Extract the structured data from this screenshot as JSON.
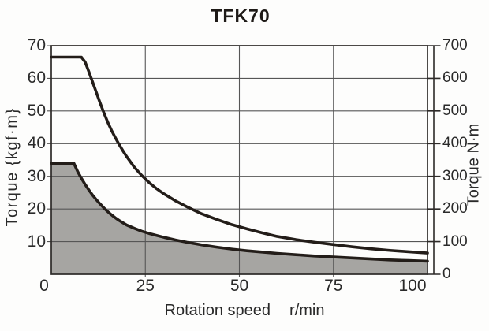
{
  "chart_data": {
    "type": "line",
    "title": "TFK70",
    "xlabel": "Rotation speed",
    "x_unit": "r/min",
    "ylabel_left": "Torque {kgf·m}",
    "ylabel_right": "Torque N·m",
    "xlim": [
      0,
      100
    ],
    "ylim_left": [
      0,
      70
    ],
    "ylim_right": [
      0,
      700
    ],
    "x_ticks": [
      0,
      25,
      50,
      75,
      100
    ],
    "y_ticks_left": [
      10,
      20,
      30,
      40,
      50,
      60,
      70
    ],
    "y_ticks_right": [
      0,
      100,
      200,
      300,
      400,
      500,
      600,
      700
    ],
    "grid": true,
    "legend": "none",
    "colors": {
      "curve": "#231d19",
      "shaded_fill": "#a6a5a2",
      "grid": "#565656",
      "axis": "#2d2a28",
      "background": "#fdfdfc"
    },
    "series": [
      {
        "name": "upper",
        "description_from_pixels": "thick black curve, flat then hyperbolic decay",
        "color": "#231d19",
        "fill": null,
        "points": [
          [
            0,
            66.5
          ],
          [
            8,
            66.5
          ],
          [
            9,
            65
          ],
          [
            10,
            62
          ],
          [
            11,
            58.8
          ],
          [
            12,
            55.6
          ],
          [
            13,
            52.4
          ],
          [
            14,
            49.4
          ],
          [
            15,
            46.6
          ],
          [
            16,
            44.1
          ],
          [
            17,
            41.9
          ],
          [
            18,
            39.8
          ],
          [
            19,
            37.9
          ],
          [
            20,
            36.1
          ],
          [
            22,
            32.9
          ],
          [
            24,
            30.3
          ],
          [
            26,
            28.1
          ],
          [
            28,
            26.2
          ],
          [
            30,
            24.6
          ],
          [
            33,
            22.5
          ],
          [
            36,
            20.7
          ],
          [
            40,
            18.5
          ],
          [
            44,
            16.8
          ],
          [
            48,
            15.2
          ],
          [
            52,
            13.9
          ],
          [
            56,
            12.7
          ],
          [
            60,
            11.6
          ],
          [
            65,
            10.6
          ],
          [
            70,
            9.8
          ],
          [
            75,
            9.1
          ],
          [
            80,
            8.4
          ],
          [
            85,
            7.8
          ],
          [
            90,
            7.3
          ],
          [
            95,
            6.9
          ],
          [
            100,
            6.5
          ]
        ]
      },
      {
        "name": "lower",
        "description_from_pixels": "thick black curve with gray shaded region below it",
        "color": "#231d19",
        "fill": "#a6a5a2",
        "points": [
          [
            0,
            34
          ],
          [
            6,
            34
          ],
          [
            7,
            31.5
          ],
          [
            8,
            29.4
          ],
          [
            9,
            27.5
          ],
          [
            10,
            25.8
          ],
          [
            11,
            24.2
          ],
          [
            12,
            22.8
          ],
          [
            13,
            21.5
          ],
          [
            14,
            20.3
          ],
          [
            15,
            19.2
          ],
          [
            16,
            18.2
          ],
          [
            17,
            17.3
          ],
          [
            18,
            16.5
          ],
          [
            19,
            15.8
          ],
          [
            20,
            15.1
          ],
          [
            22,
            14.1
          ],
          [
            24,
            13.2
          ],
          [
            26,
            12.5
          ],
          [
            28,
            11.9
          ],
          [
            30,
            11.3
          ],
          [
            33,
            10.5
          ],
          [
            36,
            9.8
          ],
          [
            40,
            9.0
          ],
          [
            44,
            8.3
          ],
          [
            48,
            7.7
          ],
          [
            52,
            7.2
          ],
          [
            56,
            6.8
          ],
          [
            60,
            6.4
          ],
          [
            65,
            6.0
          ],
          [
            70,
            5.6
          ],
          [
            75,
            5.3
          ],
          [
            80,
            5.0
          ],
          [
            85,
            4.7
          ],
          [
            90,
            4.4
          ],
          [
            95,
            4.2
          ],
          [
            100,
            4.0
          ]
        ]
      }
    ]
  }
}
